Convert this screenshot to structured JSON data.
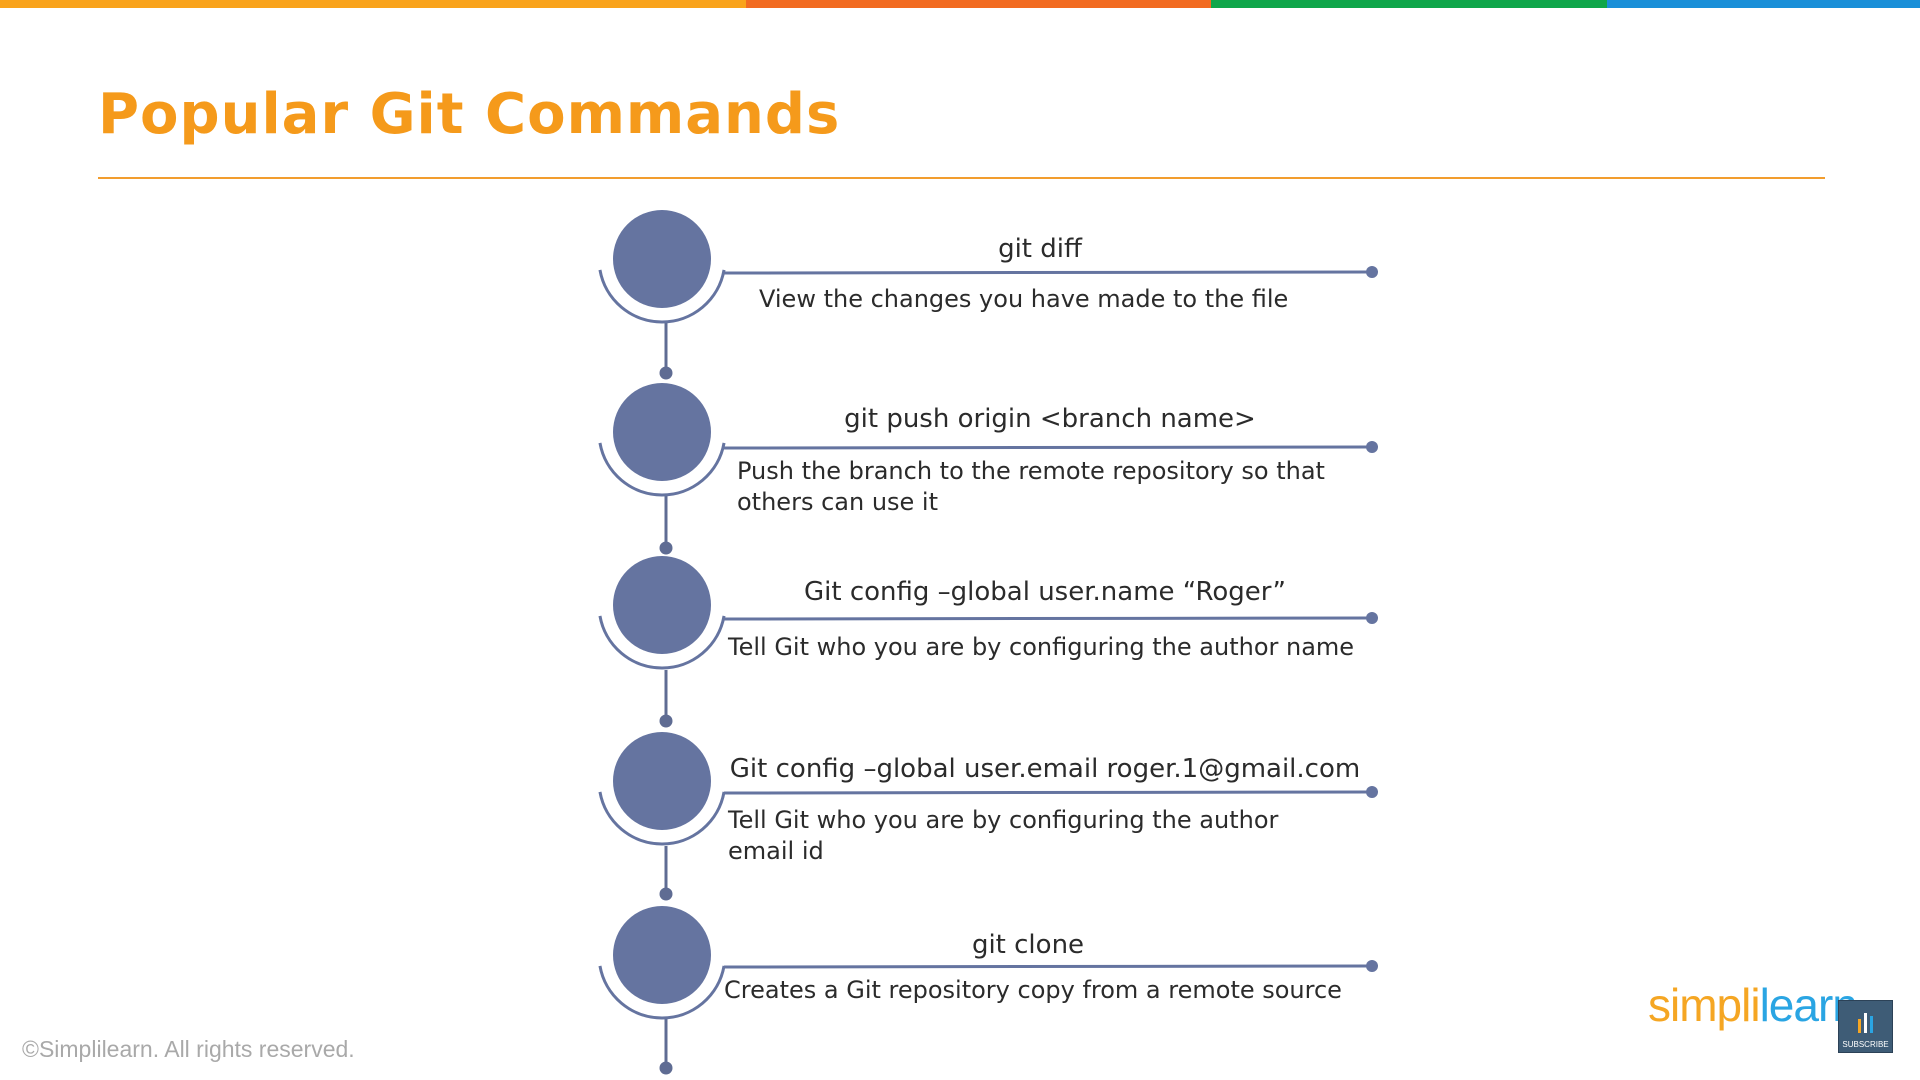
{
  "slide": {
    "title": "Popular Git Commands",
    "top_bar_colors": [
      "#F9A31B",
      "#F26B21",
      "#0FA64A",
      "#1A8FD8"
    ],
    "accent": "#F59A1B",
    "node_color": "#6574A0"
  },
  "commands": [
    {
      "command": "git diff",
      "description": "View the changes you have made to the file"
    },
    {
      "command": "git push origin <branch name>",
      "description": "Push the branch to the remote repository so that\nothers can use it"
    },
    {
      "command": "Git config –global user.name “Roger”",
      "description": "Tell Git who you are by configuring the author name"
    },
    {
      "command": "Git config –global user.email roger.1@gmail.com",
      "description": "Tell Git who you are by configuring the author\n email id"
    },
    {
      "command": "git clone",
      "description": "Creates a Git repository copy from a remote source"
    }
  ],
  "footer": {
    "copyright": "©Simplilearn. All rights reserved."
  },
  "logo": {
    "part1": "simpl",
    "part2": "i",
    "part3": "learn"
  },
  "subscribe": {
    "label": "SUBSCRIBE"
  }
}
